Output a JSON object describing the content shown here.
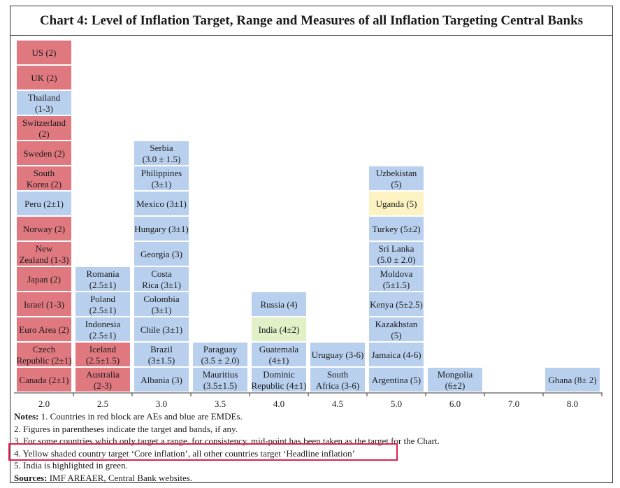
{
  "title": "Chart 4: Level of Inflation Target, Range and Measures of all Inflation Targeting Central Banks",
  "colors": {
    "ae": "#e0787f",
    "emde": "#b8d0ee",
    "core": "#fcf2c2",
    "india": "#e2f0c8"
  },
  "chart_data": {
    "type": "stacked-label-blocks",
    "xlabel": "",
    "ylabel": "",
    "categories": [
      "2.0",
      "2.5",
      "3.0",
      "3.5",
      "4.0",
      "4.5",
      "5.0",
      "6.0",
      "7.0",
      "8.0"
    ],
    "columns": [
      {
        "x": "2.0",
        "countries": [
          {
            "label": "Canada (2±1)",
            "group": "ae"
          },
          {
            "label": "Czech Republic (2±1)",
            "group": "ae"
          },
          {
            "label": "Euro Area (2)",
            "group": "ae"
          },
          {
            "label": "Israel (1-3)",
            "group": "ae"
          },
          {
            "label": "Japan (2)",
            "group": "ae"
          },
          {
            "label": "New Zealand (1-3)",
            "group": "ae"
          },
          {
            "label": "Norway (2)",
            "group": "ae"
          },
          {
            "label": "Peru (2±1)",
            "group": "emde"
          },
          {
            "label": "South Korea (2)",
            "group": "ae"
          },
          {
            "label": "Sweden (2)",
            "group": "ae"
          },
          {
            "label": "Switzerland (2)",
            "group": "ae"
          },
          {
            "label": "Thailand (1-3)",
            "group": "emde"
          },
          {
            "label": "UK (2)",
            "group": "ae"
          },
          {
            "label": "US (2)",
            "group": "ae"
          }
        ]
      },
      {
        "x": "2.5",
        "countries": [
          {
            "label": "Australia (2-3)",
            "group": "ae"
          },
          {
            "label": "Iceland (2.5±1.5)",
            "group": "ae"
          },
          {
            "label": "Indonesia (2.5±1)",
            "group": "emde"
          },
          {
            "label": "Poland (2.5±1)",
            "group": "emde"
          },
          {
            "label": "Romania (2.5±1)",
            "group": "emde"
          }
        ]
      },
      {
        "x": "3.0",
        "countries": [
          {
            "label": "Albania (3)",
            "group": "emde"
          },
          {
            "label": "Brazil (3±1.5)",
            "group": "emde"
          },
          {
            "label": "Chile (3±1)",
            "group": "emde"
          },
          {
            "label": "Colombia (3±1)",
            "group": "emde"
          },
          {
            "label": "Costa Rica (3±1)",
            "group": "emde"
          },
          {
            "label": "Georgia (3)",
            "group": "emde"
          },
          {
            "label": "Hungary (3±1)",
            "group": "emde"
          },
          {
            "label": "Mexico (3±1)",
            "group": "emde"
          },
          {
            "label": "Philippines (3±1)",
            "group": "emde"
          },
          {
            "label": "Serbia (3.0 ± 1.5)",
            "group": "emde"
          }
        ]
      },
      {
        "x": "3.5",
        "countries": [
          {
            "label": "Mauritius (3.5±1.5)",
            "group": "emde"
          },
          {
            "label": "Paraguay (3.5 ± 2.0)",
            "group": "emde"
          }
        ]
      },
      {
        "x": "4.0",
        "countries": [
          {
            "label": "Dominic Republic (4±1)",
            "group": "emde"
          },
          {
            "label": "Guatemala (4±1)",
            "group": "emde"
          },
          {
            "label": "India (4±2)",
            "group": "india"
          },
          {
            "label": "Russia (4)",
            "group": "emde"
          }
        ]
      },
      {
        "x": "4.5",
        "countries": [
          {
            "label": "South Africa (3-6)",
            "group": "emde"
          },
          {
            "label": "Uruguay (3-6)",
            "group": "emde"
          }
        ]
      },
      {
        "x": "5.0",
        "countries": [
          {
            "label": "Argentina (5)",
            "group": "emde"
          },
          {
            "label": "Jamaica (4-6)",
            "group": "emde"
          },
          {
            "label": "Kazakhstan (5)",
            "group": "emde"
          },
          {
            "label": "Kenya (5±2.5)",
            "group": "emde"
          },
          {
            "label": "Moldova (5±1.5)",
            "group": "emde"
          },
          {
            "label": "Sri Lanka (5.0 ± 2.0)",
            "group": "emde"
          },
          {
            "label": "Turkey (5±2)",
            "group": "emde"
          },
          {
            "label": "Uganda (5)",
            "group": "core"
          },
          {
            "label": "Uzbekistan (5)",
            "group": "emde"
          }
        ]
      },
      {
        "x": "6.0",
        "countries": [
          {
            "label": "Mongolia (6±2)",
            "group": "emde"
          }
        ]
      },
      {
        "x": "7.0",
        "countries": []
      },
      {
        "x": "8.0",
        "countries": [
          {
            "label": "Ghana (8± 2)",
            "group": "emde"
          }
        ]
      }
    ]
  },
  "notes": {
    "heading": "Notes:",
    "n1": " 1. Countries in red block are AEs and blue are EMDEs.",
    "n2": "2. Figures in parentheses indicate the target and bands, if any.",
    "n3": "3. For some countries which only target a range, for consistency, mid-point has been taken as the target for the Chart.",
    "n4": "4. Yellow shaded country target ‘Core inflation’, all other countries target ‘Headline inflation’",
    "n5": "5. India is highlighted in green.",
    "sources_heading": "Sources:",
    "sources": " IMF AREAER, Central Bank websites."
  }
}
